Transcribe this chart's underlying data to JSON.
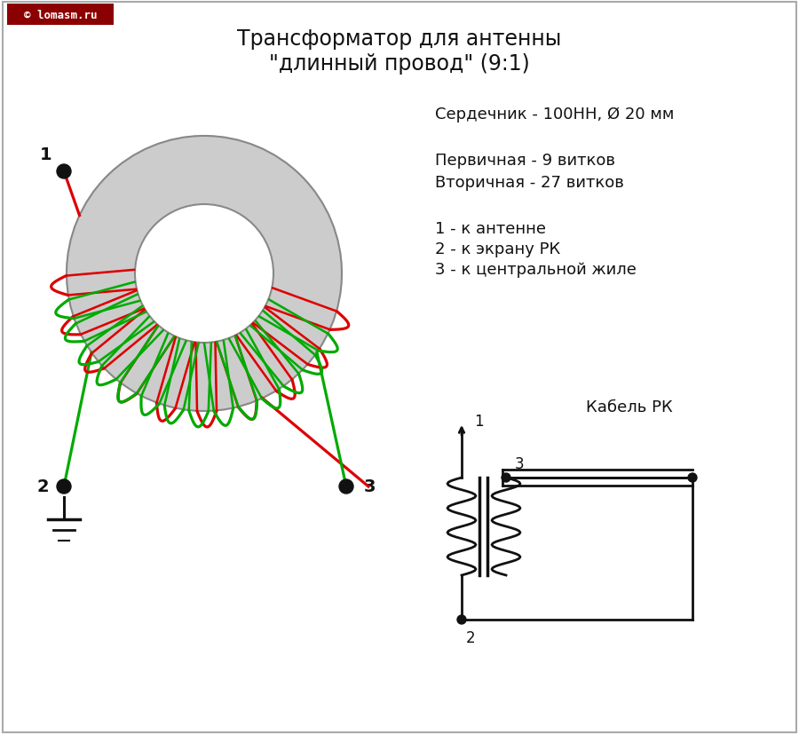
{
  "title_line1": "Трансформатор для антенны",
  "title_line2": "\"длинный провод\" (9:1)",
  "watermark_text": "© lomasm.ru",
  "watermark_bg": "#8B0000",
  "watermark_fg": "#ffffff",
  "info_line1": "Сердечник - 100НН, Ø 20 мм",
  "info_line2": "Первичная - 9 витков",
  "info_line3": "Вторичная - 27 витков",
  "info_line4": "1 - к антенне",
  "info_line5": "2 - к экрану РК",
  "info_line6": "3 - к центральной жиле",
  "cable_label": "Кабель РК",
  "bg_color": "#ffffff",
  "toroid_color": "#cccccc",
  "toroid_edge": "#888888",
  "red_color": "#dd0000",
  "green_color": "#00aa00",
  "dot_color": "#111111",
  "line_color": "#111111",
  "text_color": "#111111",
  "font_size_title": 17,
  "font_size_info": 13,
  "font_size_label": 13
}
